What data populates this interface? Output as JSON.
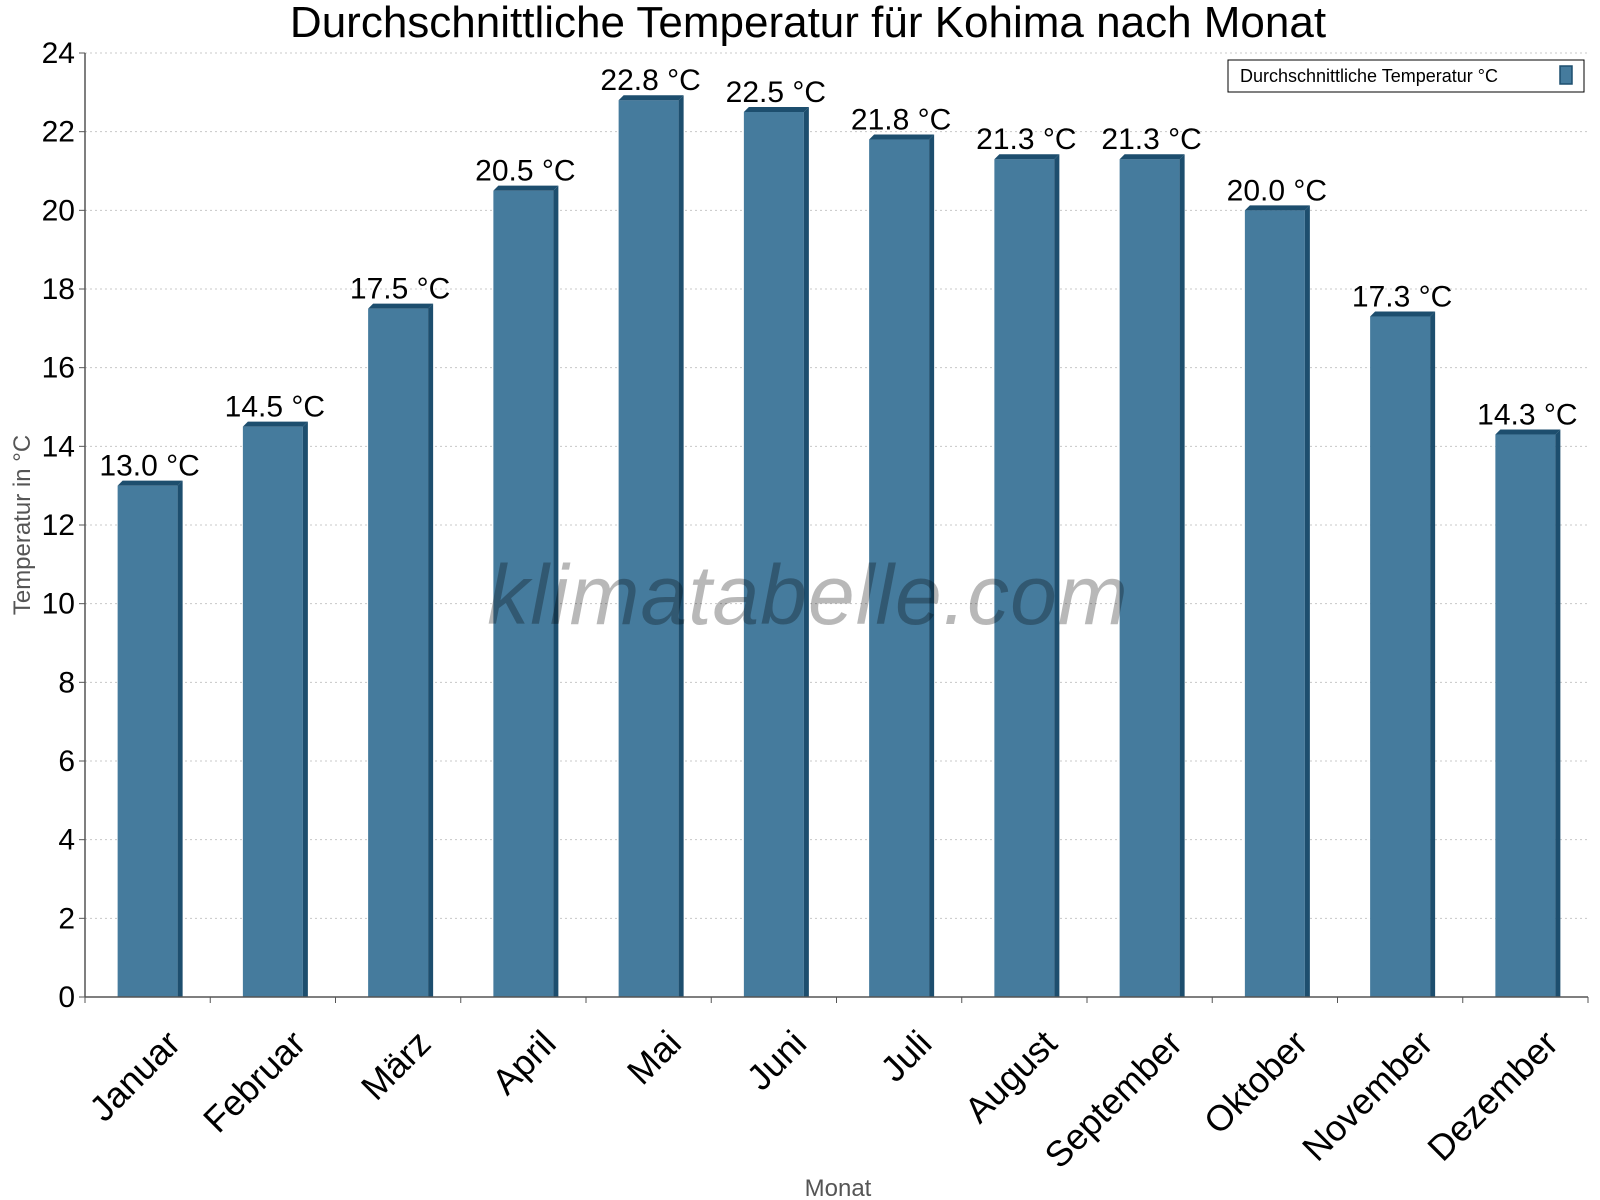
{
  "chart_data": {
    "type": "bar",
    "title": "Durchschnittliche Temperatur für Kohima nach Monat",
    "xlabel": "Monat",
    "ylabel": "Temperatur in °C",
    "categories": [
      "Januar",
      "Februar",
      "März",
      "April",
      "Mai",
      "Juni",
      "Juli",
      "August",
      "September",
      "Oktober",
      "November",
      "Dezember"
    ],
    "series": [
      {
        "name": "Durchschnittliche Temperatur °C",
        "values": [
          13.0,
          14.5,
          17.5,
          20.5,
          22.8,
          22.5,
          21.8,
          21.3,
          21.3,
          20.0,
          17.3,
          14.3
        ],
        "data_labels": [
          "13.0 °C",
          "14.5 °C",
          "17.5 °C",
          "20.5 °C",
          "22.8 °C",
          "22.5 °C",
          "21.8 °C",
          "21.3 °C",
          "21.3 °C",
          "20.0 °C",
          "17.3 °C",
          "14.3 °C"
        ],
        "color": "#457b9d",
        "edge_color": "#1d4e6e"
      }
    ],
    "ylim": [
      0,
      24
    ],
    "yticks": [
      0,
      2,
      4,
      6,
      8,
      10,
      12,
      14,
      16,
      18,
      20,
      22,
      24
    ],
    "grid": true,
    "legend_position": "top-right",
    "watermark": "klimatabelle.com"
  }
}
